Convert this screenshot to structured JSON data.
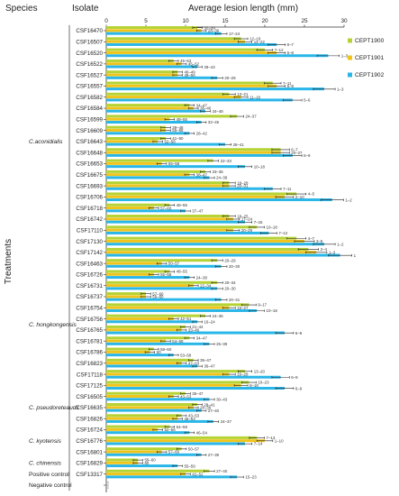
{
  "headers": {
    "species": "Species",
    "isolate": "Isolate",
    "title": "Average lesion length (mm)",
    "treatments": "Treatments"
  },
  "legend": [
    {
      "name": "CEPT1900",
      "color": "#b5d334"
    },
    {
      "name": "CEPT1901",
      "color": "#f0c419"
    },
    {
      "name": "CEPT1902",
      "color": "#29b6e8"
    }
  ],
  "chart_data": {
    "type": "bar",
    "orientation": "horizontal",
    "title": "Average lesion length (mm)",
    "xlim": [
      0,
      30
    ],
    "xticks": [
      0,
      5,
      10,
      15,
      20,
      25,
      30
    ],
    "ylabel": "Treatments",
    "series": [
      "CEPT1900",
      "CEPT1901",
      "CEPT1902"
    ],
    "rows": [
      {
        "isolate": "CSF16470",
        "values": [
          11.5,
          12.0,
          14.5
        ],
        "labels": [
          "32–39",
          "28–39",
          "17–24"
        ]
      },
      {
        "isolate": "CSF16507",
        "values": [
          17.0,
          17.5,
          21.5
        ],
        "labels": [
          "12–19",
          "14–22",
          "6–7"
        ]
      },
      {
        "isolate": "CSF16520",
        "values": [
          20.0,
          21.5,
          28.0
        ],
        "labels": [
          "7–12",
          "6–8",
          "1–3"
        ]
      },
      {
        "isolate": "CSF16522",
        "values": [
          8.5,
          9.5,
          11.5
        ],
        "labels": [
          "45–53",
          "45–52",
          "29–43"
        ]
      },
      {
        "isolate": "CSF16527",
        "values": [
          9.0,
          9.0,
          14.0
        ],
        "labels": [
          "40–49",
          "49–56",
          "20–29"
        ]
      },
      {
        "isolate": "CSF16557",
        "values": [
          21.0,
          21.5,
          27.5
        ],
        "labels": [
          "7–11",
          "6–8",
          "1–3"
        ]
      },
      {
        "isolate": "CSF16582",
        "values": [
          15.5,
          17.0,
          23.5
        ],
        "labels": [
          "13–21",
          "11–18",
          "5–6"
        ]
      },
      {
        "isolate": "CSF16584",
        "values": [
          10.5,
          11.0,
          12.5
        ],
        "labels": [
          "34–47",
          "36–46",
          "34–48"
        ]
      },
      {
        "isolate": "CSF16599",
        "values": [
          16.5,
          8.0,
          12.0
        ],
        "labels": [
          "24–37",
          "48–55",
          "32–45"
        ]
      },
      {
        "isolate": "CSF16609",
        "values": [
          7.5,
          7.5,
          10.5
        ],
        "labels": [
          "39–48",
          "55–58",
          "28–42"
        ]
      },
      {
        "isolate": "CSF16643",
        "values": [
          7.5,
          6.5,
          15.0
        ],
        "labels": [
          "41–50",
          "52–58",
          "28–41"
        ]
      },
      {
        "isolate": "CSF16648",
        "values": [
          22.0,
          22.0,
          23.5
        ],
        "labels": [
          "6–7",
          "20–27",
          "6–9"
        ]
      },
      {
        "isolate": "CSF16653",
        "values": [
          13.5,
          7.0,
          17.5
        ],
        "labels": [
          "22–33",
          "55–58",
          "10–18"
        ]
      },
      {
        "isolate": "CSF16675",
        "values": [
          12.5,
          10.5,
          13.0
        ],
        "labels": [
          "33–35",
          "38–47",
          "24–38"
        ]
      },
      {
        "isolate": "CSF16693",
        "values": [
          15.5,
          15.5,
          21.0
        ],
        "labels": [
          "18–28",
          "20–31",
          "7–11"
        ]
      },
      {
        "isolate": "CSF16706",
        "values": [
          24.0,
          22.5,
          28.5
        ],
        "labels": [
          "4–5",
          "2–10",
          "1–2"
        ]
      },
      {
        "isolate": "CSF16718",
        "values": [
          8.0,
          6.0,
          10.0
        ],
        "labels": [
          "46–55",
          "57–60",
          "37–47"
        ]
      },
      {
        "isolate": "CSF16742",
        "values": [
          15.5,
          16.0,
          17.5
        ],
        "labels": [
          "18–25",
          "17–24",
          "7–15"
        ]
      },
      {
        "isolate": "CSF17110",
        "values": [
          19.0,
          16.0,
          20.5
        ],
        "labels": [
          "10–18",
          "20–29",
          "7–12"
        ]
      },
      {
        "isolate": "CSF17130",
        "values": [
          24.0,
          25.0,
          27.5
        ],
        "labels": [
          "4–7",
          "3–5",
          "1–2"
        ]
      },
      {
        "isolate": "CSF17142",
        "values": [
          25.5,
          26.5,
          29.5
        ],
        "labels": [
          "2–4",
          "1–3",
          "1"
        ]
      },
      {
        "isolate": "CSF16463",
        "values": [
          14.0,
          7.0,
          14.5
        ],
        "labels": [
          "20–29",
          "50–57",
          "20–30"
        ]
      },
      {
        "isolate": "CSF16726",
        "values": [
          8.0,
          6.0,
          10.5
        ],
        "labels": [
          "48–55",
          "55–58",
          "24–38"
        ]
      },
      {
        "isolate": "CSF16731",
        "values": [
          14.0,
          11.0,
          14.0
        ],
        "labels": [
          "20–34",
          "22–34",
          "20–30"
        ]
      },
      {
        "isolate": "CSF16737",
        "values": [
          5.0,
          5.0,
          14.5
        ],
        "labels": [
          "57–60",
          "56–60",
          "20–31"
        ]
      },
      {
        "isolate": "CSF16754",
        "values": [
          18.0,
          15.5,
          19.0
        ],
        "labels": [
          "9–17",
          "16–27",
          "10–18"
        ]
      },
      {
        "isolate": "CSF16756",
        "values": [
          12.5,
          8.5,
          11.5
        ],
        "labels": [
          "24–36",
          "42–51",
          "16–24"
        ]
      },
      {
        "isolate": "CSF16765",
        "values": [
          10.0,
          9.5,
          22.5
        ],
        "labels": [
          "21–44",
          "33–46",
          "6–9"
        ]
      },
      {
        "isolate": "CSF16781",
        "values": [
          10.5,
          7.5,
          13.0
        ],
        "labels": [
          "34–47",
          "54–58",
          "25–39"
        ]
      },
      {
        "isolate": "CSF16786",
        "values": [
          6.0,
          5.5,
          8.5
        ],
        "labels": [
          "58–60",
          "60",
          "53–58"
        ]
      },
      {
        "isolate": "CSF16823",
        "values": [
          11.0,
          9.5,
          11.5
        ],
        "labels": [
          "35–47",
          "47–53",
          "36–47"
        ]
      },
      {
        "isolate": "CSF17118",
        "values": [
          17.5,
          15.5,
          22.0
        ],
        "labels": [
          "13–20",
          "16–28",
          "6–9"
        ]
      },
      {
        "isolate": "CSF17125",
        "values": [
          18.0,
          17.0,
          22.5
        ],
        "labels": [
          "10–23",
          "8–18",
          "6–9"
        ]
      },
      {
        "isolate": "CSF16505",
        "values": [
          10.0,
          8.5,
          13.0
        ],
        "labels": [
          "35–47",
          "43–53",
          "30–43"
        ]
      },
      {
        "isolate": "CSF16635",
        "values": [
          11.5,
          11.0,
          12.0
        ],
        "labels": [
          "28–41",
          "28–39",
          "27–40"
        ]
      },
      {
        "isolate": "CSF16826",
        "values": [
          9.5,
          9.0,
          13.5
        ],
        "labels": [
          "43–53",
          "46–53",
          "24–37"
        ]
      },
      {
        "isolate": "CSF16724",
        "values": [
          8.0,
          6.5,
          10.5
        ],
        "labels": [
          "54–58",
          "52–56",
          "46–54"
        ]
      },
      {
        "isolate": "CSF16776",
        "values": [
          19.0,
          20.0,
          17.5
        ],
        "labels": [
          "7–13",
          "1–10",
          "7–14"
        ]
      },
      {
        "isolate": "CSF16801",
        "values": [
          9.5,
          7.0,
          12.0
        ],
        "labels": [
          "50–57",
          "57–60",
          "27–39"
        ]
      },
      {
        "isolate": "CSF16829",
        "values": [
          4.0,
          4.0,
          9.0
        ],
        "labels": [
          "59–60",
          "60",
          "55–59"
        ]
      },
      {
        "isolate": "CSF13317",
        "values": [
          13.0,
          10.0,
          16.5
        ],
        "labels": [
          "27–40",
          "42–52",
          "15–23"
        ]
      },
      {
        "isolate": "",
        "values": [
          0,
          0,
          0
        ],
        "labels": [
          "",
          "",
          ""
        ]
      }
    ],
    "groups": [
      {
        "name": "C.aconidialis",
        "italic": true,
        "rows": [
          0,
          20
        ]
      },
      {
        "name": "C. hongkongensis",
        "italic": true,
        "rows": [
          21,
          32
        ]
      },
      {
        "name": "C. pseudoreteaudii",
        "italic": true,
        "rows": [
          33,
          35
        ]
      },
      {
        "name": "C. kyotensis",
        "italic": true,
        "rows": [
          36,
          38
        ]
      },
      {
        "name": "C. chinensis",
        "italic": true,
        "rows": [
          39,
          39
        ]
      },
      {
        "name": "Positive control",
        "italic": false,
        "rows": [
          40,
          40
        ]
      },
      {
        "name": "Negative control",
        "italic": false,
        "rows": [
          41,
          41
        ]
      }
    ]
  }
}
